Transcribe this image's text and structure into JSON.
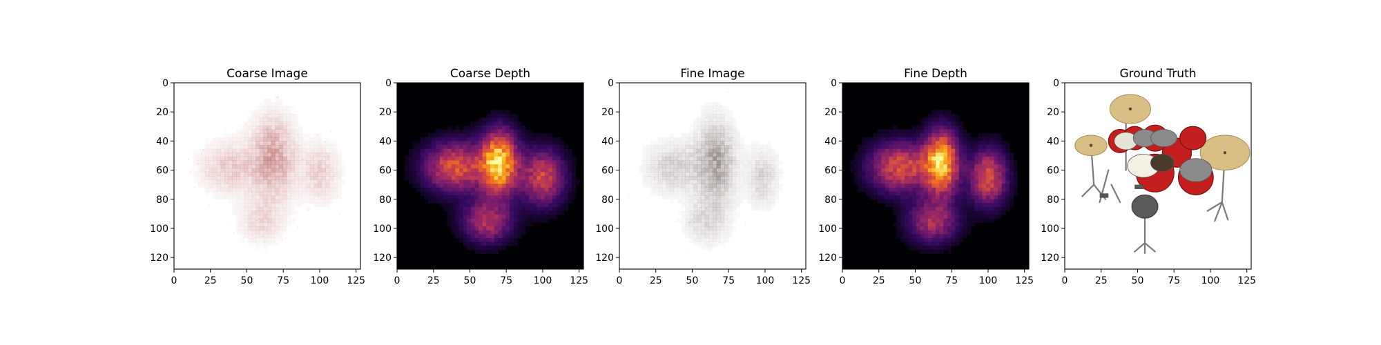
{
  "chart_data": [
    {
      "type": "heatmap",
      "title": "Coarse Image",
      "colormap": "rgb-render",
      "tint": "#b04a4a",
      "xlim": [
        0,
        128
      ],
      "ylim": [
        128,
        0
      ],
      "xticks": [
        0,
        25,
        50,
        75,
        100,
        125
      ],
      "yticks": [
        0,
        20,
        40,
        60,
        80,
        100,
        120
      ],
      "blobs": [
        {
          "cx": 68,
          "cy": 52,
          "sx": 14,
          "sy": 26,
          "w": 1.0
        },
        {
          "cx": 38,
          "cy": 58,
          "sx": 18,
          "sy": 16,
          "w": 0.55
        },
        {
          "cx": 100,
          "cy": 62,
          "sx": 12,
          "sy": 18,
          "w": 0.5
        },
        {
          "cx": 60,
          "cy": 95,
          "sx": 14,
          "sy": 14,
          "w": 0.4
        }
      ]
    },
    {
      "type": "heatmap",
      "title": "Coarse Depth",
      "colormap": "inferno",
      "xlim": [
        0,
        128
      ],
      "ylim": [
        128,
        0
      ],
      "xticks": [
        0,
        25,
        50,
        75,
        100,
        125
      ],
      "yticks": [
        0,
        20,
        40,
        60,
        80,
        100,
        120
      ],
      "blobs": [
        {
          "cx": 70,
          "cy": 55,
          "sx": 12,
          "sy": 20,
          "w": 1.0
        },
        {
          "cx": 40,
          "cy": 58,
          "sx": 20,
          "sy": 16,
          "w": 0.6
        },
        {
          "cx": 100,
          "cy": 65,
          "sx": 14,
          "sy": 18,
          "w": 0.55
        },
        {
          "cx": 62,
          "cy": 95,
          "sx": 16,
          "sy": 14,
          "w": 0.45
        }
      ]
    },
    {
      "type": "heatmap",
      "title": "Fine Image",
      "colormap": "rgb-render",
      "tint": "#5a4a45",
      "xlim": [
        0,
        128
      ],
      "ylim": [
        128,
        0
      ],
      "xticks": [
        0,
        25,
        50,
        75,
        100,
        125
      ],
      "yticks": [
        0,
        20,
        40,
        60,
        80,
        100,
        120
      ],
      "blobs": [
        {
          "cx": 66,
          "cy": 55,
          "sx": 12,
          "sy": 26,
          "w": 1.0
        },
        {
          "cx": 38,
          "cy": 58,
          "sx": 18,
          "sy": 16,
          "w": 0.5
        },
        {
          "cx": 98,
          "cy": 65,
          "sx": 10,
          "sy": 18,
          "w": 0.45
        },
        {
          "cx": 60,
          "cy": 95,
          "sx": 14,
          "sy": 14,
          "w": 0.4
        }
      ]
    },
    {
      "type": "heatmap",
      "title": "Fine Depth",
      "colormap": "inferno",
      "xlim": [
        0,
        128
      ],
      "ylim": [
        128,
        0
      ],
      "xticks": [
        0,
        25,
        50,
        75,
        100,
        125
      ],
      "yticks": [
        0,
        20,
        40,
        60,
        80,
        100,
        120
      ],
      "blobs": [
        {
          "cx": 68,
          "cy": 55,
          "sx": 11,
          "sy": 20,
          "w": 1.0
        },
        {
          "cx": 40,
          "cy": 58,
          "sx": 20,
          "sy": 16,
          "w": 0.6
        },
        {
          "cx": 100,
          "cy": 65,
          "sx": 12,
          "sy": 18,
          "w": 0.6
        },
        {
          "cx": 62,
          "cy": 95,
          "sx": 16,
          "sy": 14,
          "w": 0.45
        }
      ]
    },
    {
      "type": "image",
      "title": "Ground Truth",
      "subject": "drum kit",
      "xlim": [
        0,
        128
      ],
      "ylim": [
        128,
        0
      ],
      "xticks": [
        0,
        25,
        50,
        75,
        100,
        125
      ],
      "yticks": [
        0,
        20,
        40,
        60,
        80,
        100,
        120
      ]
    }
  ],
  "colors": {
    "inferno_stops": [
      "#000004",
      "#320a5e",
      "#781c6d",
      "#bc3754",
      "#ed6925",
      "#fbb61a",
      "#fcffa4"
    ],
    "drum_red": "#c41e1e",
    "cymbal_gold": "#d9bf85",
    "hardware_gray": "#7a7a7a"
  }
}
